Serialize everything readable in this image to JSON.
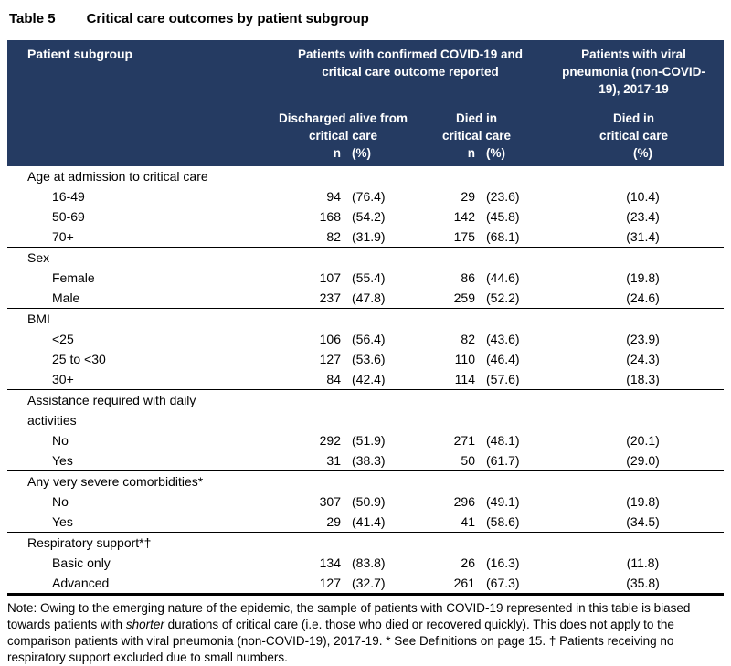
{
  "colors": {
    "header_bg": "#253B62",
    "header_fg": "#FFFFFF"
  },
  "caption": {
    "number": "Table 5",
    "title": "Critical care outcomes by patient subgroup"
  },
  "table": {
    "header": {
      "patient_subgroup": "Patient subgroup",
      "covid_group": "Patients with confirmed COVID-19 and critical care outcome reported",
      "pneumonia_group": "Patients with viral pneumonia (non-COVID-19), 2017-19",
      "sub_discharged": "Discharged alive from critical care",
      "sub_died": "Died in critical care",
      "sub_died_pneumonia": "Died in critical care",
      "n_label": "n",
      "pct_label": "(%)"
    },
    "sections": [
      {
        "label": "Age at admission to critical care",
        "rows": [
          {
            "label": "16-49",
            "n1": "94",
            "p1": "(76.4)",
            "n2": "29",
            "p2": "(23.6)",
            "p3": "(10.4)"
          },
          {
            "label": "50-69",
            "n1": "168",
            "p1": "(54.2)",
            "n2": "142",
            "p2": "(45.8)",
            "p3": "(23.4)"
          },
          {
            "label": "70+",
            "n1": "82",
            "p1": "(31.9)",
            "n2": "175",
            "p2": "(68.1)",
            "p3": "(31.4)"
          }
        ]
      },
      {
        "label": "Sex",
        "rows": [
          {
            "label": "Female",
            "n1": "107",
            "p1": "(55.4)",
            "n2": "86",
            "p2": "(44.6)",
            "p3": "(19.8)"
          },
          {
            "label": "Male",
            "n1": "237",
            "p1": "(47.8)",
            "n2": "259",
            "p2": "(52.2)",
            "p3": "(24.6)"
          }
        ]
      },
      {
        "label": "BMI",
        "rows": [
          {
            "label": "<25",
            "n1": "106",
            "p1": "(56.4)",
            "n2": "82",
            "p2": "(43.6)",
            "p3": "(23.9)"
          },
          {
            "label": "25 to <30",
            "n1": "127",
            "p1": "(53.6)",
            "n2": "110",
            "p2": "(46.4)",
            "p3": "(24.3)"
          },
          {
            "label": "30+",
            "n1": "84",
            "p1": "(42.4)",
            "n2": "114",
            "p2": "(57.6)",
            "p3": "(18.3)"
          }
        ]
      },
      {
        "label": "Assistance required with daily activities",
        "rows": [
          {
            "label": "No",
            "n1": "292",
            "p1": "(51.9)",
            "n2": "271",
            "p2": "(48.1)",
            "p3": "(20.1)"
          },
          {
            "label": "Yes",
            "n1": "31",
            "p1": "(38.3)",
            "n2": "50",
            "p2": "(61.7)",
            "p3": "(29.0)"
          }
        ]
      },
      {
        "label": "Any very severe comorbidities*",
        "rows": [
          {
            "label": "No",
            "n1": "307",
            "p1": "(50.9)",
            "n2": "296",
            "p2": "(49.1)",
            "p3": "(19.8)"
          },
          {
            "label": "Yes",
            "n1": "29",
            "p1": "(41.4)",
            "n2": "41",
            "p2": "(58.6)",
            "p3": "(34.5)"
          }
        ]
      },
      {
        "label": "Respiratory support*†",
        "rows": [
          {
            "label": "Basic only",
            "n1": "134",
            "p1": "(83.8)",
            "n2": "26",
            "p2": "(16.3)",
            "p3": "(11.8)"
          },
          {
            "label": "Advanced",
            "n1": "127",
            "p1": "(32.7)",
            "n2": "261",
            "p2": "(67.3)",
            "p3": "(35.8)"
          }
        ]
      }
    ]
  },
  "note": {
    "part1": "Note: Owing to the emerging nature of the epidemic, the sample of patients with COVID-19 represented in this table is biased towards patients with ",
    "italic": "shorter",
    "part2": " durations of critical care (i.e. those who died or recovered quickly). This does not apply to the comparison patients with viral pneumonia (non-COVID-19), 2017-19. * See Definitions on page 15. † Patients receiving no respiratory support excluded due to small numbers."
  }
}
